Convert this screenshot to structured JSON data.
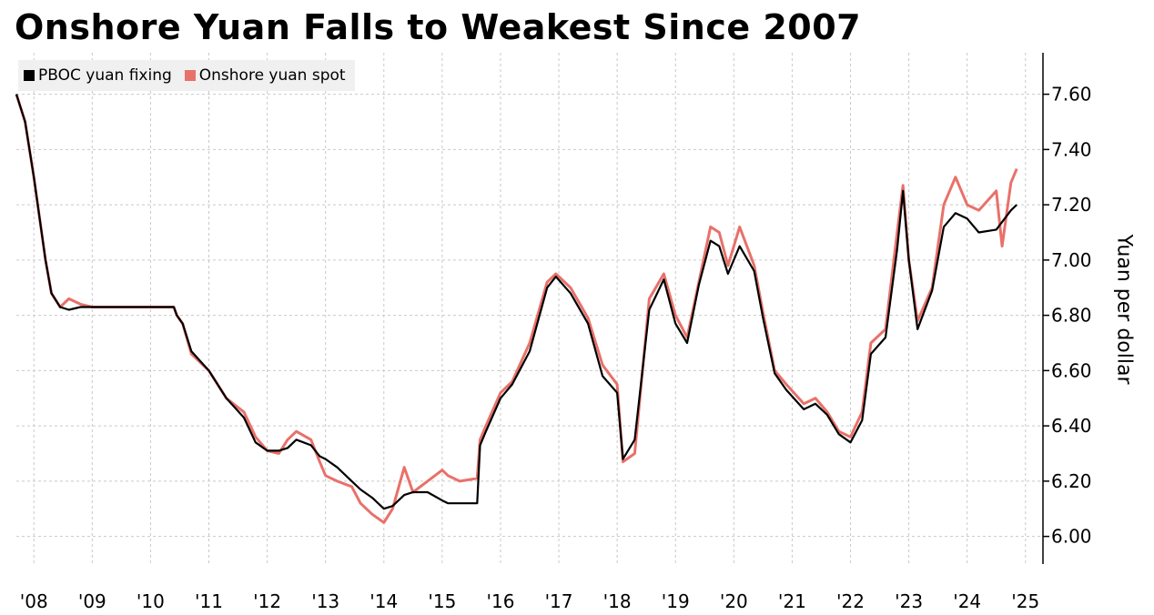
{
  "title": "Onshore Yuan Falls to Weakest Since 2007",
  "colors": {
    "fixing": "#000000",
    "spot": "#e8716a",
    "grid": "#c9c9c9",
    "legend_bg": "#f0f0f0"
  },
  "chart_data": {
    "type": "line",
    "title": "Onshore Yuan Falls to Weakest Since 2007",
    "ylabel": "Yuan per dollar",
    "ylim": [
      5.9,
      7.75
    ],
    "xlim": [
      2007.7,
      2025.3
    ],
    "yticks": [
      6.0,
      6.2,
      6.4,
      6.6,
      6.8,
      7.0,
      7.2,
      7.4,
      7.6
    ],
    "ytick_labels": [
      "6.00",
      "6.20",
      "6.40",
      "6.60",
      "6.80",
      "7.00",
      "7.20",
      "7.40",
      "7.60"
    ],
    "xticks": [
      2008,
      2009,
      2010,
      2011,
      2012,
      2013,
      2014,
      2015,
      2016,
      2017,
      2018,
      2019,
      2020,
      2021,
      2022,
      2023,
      2024,
      2025
    ],
    "xtick_labels": [
      "'08",
      "'09",
      "'10",
      "'11",
      "'12",
      "'13",
      "'14",
      "'15",
      "'16",
      "'17",
      "'18",
      "'19",
      "'20",
      "'21",
      "'22",
      "'23",
      "'24",
      "'25"
    ],
    "legend_position": "top-left",
    "grid": true,
    "series": [
      {
        "name": "PBOC yuan fixing",
        "color": "#000000",
        "x": [
          2007.7,
          2007.85,
          2008.0,
          2008.1,
          2008.2,
          2008.3,
          2008.45,
          2008.6,
          2008.8,
          2009.0,
          2009.5,
          2010.0,
          2010.4,
          2010.45,
          2010.55,
          2010.7,
          2011.0,
          2011.3,
          2011.6,
          2011.8,
          2012.0,
          2012.2,
          2012.35,
          2012.5,
          2012.75,
          2012.9,
          2013.0,
          2013.2,
          2013.45,
          2013.6,
          2013.8,
          2014.0,
          2014.15,
          2014.35,
          2014.5,
          2014.75,
          2015.0,
          2015.1,
          2015.3,
          2015.6,
          2015.65,
          2015.75,
          2016.0,
          2016.2,
          2016.5,
          2016.8,
          2016.95,
          2017.2,
          2017.5,
          2017.75,
          2018.0,
          2018.1,
          2018.3,
          2018.55,
          2018.8,
          2019.0,
          2019.2,
          2019.4,
          2019.6,
          2019.75,
          2019.9,
          2020.1,
          2020.35,
          2020.5,
          2020.7,
          2020.9,
          2021.2,
          2021.4,
          2021.6,
          2021.8,
          2022.0,
          2022.2,
          2022.35,
          2022.6,
          2022.8,
          2022.9,
          2023.0,
          2023.15,
          2023.4,
          2023.6,
          2023.8,
          2024.0,
          2024.2,
          2024.5,
          2024.75,
          2024.85
        ],
        "y": [
          7.6,
          7.5,
          7.3,
          7.15,
          7.0,
          6.88,
          6.83,
          6.82,
          6.83,
          6.83,
          6.83,
          6.83,
          6.83,
          6.8,
          6.77,
          6.67,
          6.6,
          6.5,
          6.43,
          6.34,
          6.31,
          6.31,
          6.32,
          6.35,
          6.33,
          6.29,
          6.28,
          6.25,
          6.2,
          6.17,
          6.14,
          6.1,
          6.11,
          6.15,
          6.16,
          6.16,
          6.13,
          6.12,
          6.12,
          6.12,
          6.33,
          6.38,
          6.5,
          6.55,
          6.67,
          6.9,
          6.94,
          6.88,
          6.77,
          6.58,
          6.52,
          6.28,
          6.35,
          6.82,
          6.93,
          6.77,
          6.7,
          6.91,
          7.07,
          7.05,
          6.95,
          7.05,
          6.96,
          6.79,
          6.59,
          6.53,
          6.46,
          6.48,
          6.44,
          6.37,
          6.34,
          6.42,
          6.66,
          6.72,
          7.04,
          7.25,
          7.0,
          6.75,
          6.89,
          7.12,
          7.17,
          7.15,
          7.1,
          7.11,
          7.18,
          7.2
        ]
      },
      {
        "name": "Onshore yuan spot",
        "color": "#e8716a",
        "x": [
          2007.7,
          2007.85,
          2008.0,
          2008.1,
          2008.2,
          2008.3,
          2008.45,
          2008.6,
          2008.8,
          2009.0,
          2009.5,
          2010.0,
          2010.4,
          2010.45,
          2010.55,
          2010.7,
          2011.0,
          2011.3,
          2011.6,
          2011.8,
          2012.0,
          2012.2,
          2012.35,
          2012.5,
          2012.75,
          2012.9,
          2013.0,
          2013.2,
          2013.45,
          2013.6,
          2013.8,
          2014.0,
          2014.15,
          2014.35,
          2014.5,
          2014.75,
          2015.0,
          2015.1,
          2015.3,
          2015.6,
          2015.65,
          2015.75,
          2016.0,
          2016.2,
          2016.5,
          2016.8,
          2016.95,
          2017.2,
          2017.5,
          2017.75,
          2018.0,
          2018.1,
          2018.3,
          2018.55,
          2018.8,
          2019.0,
          2019.2,
          2019.4,
          2019.6,
          2019.75,
          2019.9,
          2020.1,
          2020.35,
          2020.5,
          2020.7,
          2020.9,
          2021.2,
          2021.4,
          2021.6,
          2021.8,
          2022.0,
          2022.2,
          2022.35,
          2022.6,
          2022.8,
          2022.9,
          2023.0,
          2023.15,
          2023.4,
          2023.6,
          2023.8,
          2024.0,
          2024.2,
          2024.5,
          2024.6,
          2024.75,
          2024.85
        ],
        "y": [
          7.6,
          7.5,
          7.3,
          7.15,
          7.0,
          6.88,
          6.83,
          6.86,
          6.84,
          6.83,
          6.83,
          6.83,
          6.83,
          6.8,
          6.77,
          6.66,
          6.6,
          6.5,
          6.45,
          6.36,
          6.31,
          6.3,
          6.35,
          6.38,
          6.35,
          6.27,
          6.22,
          6.2,
          6.18,
          6.12,
          6.08,
          6.05,
          6.1,
          6.25,
          6.16,
          6.2,
          6.24,
          6.22,
          6.2,
          6.21,
          6.35,
          6.4,
          6.52,
          6.56,
          6.7,
          6.92,
          6.95,
          6.9,
          6.79,
          6.62,
          6.55,
          6.27,
          6.3,
          6.86,
          6.95,
          6.8,
          6.72,
          6.92,
          7.12,
          7.1,
          6.98,
          7.12,
          6.98,
          6.81,
          6.6,
          6.55,
          6.48,
          6.5,
          6.45,
          6.38,
          6.36,
          6.45,
          6.7,
          6.75,
          7.1,
          7.27,
          7.0,
          6.78,
          6.9,
          7.2,
          7.3,
          7.2,
          7.18,
          7.25,
          7.05,
          7.28,
          7.33
        ]
      }
    ]
  }
}
